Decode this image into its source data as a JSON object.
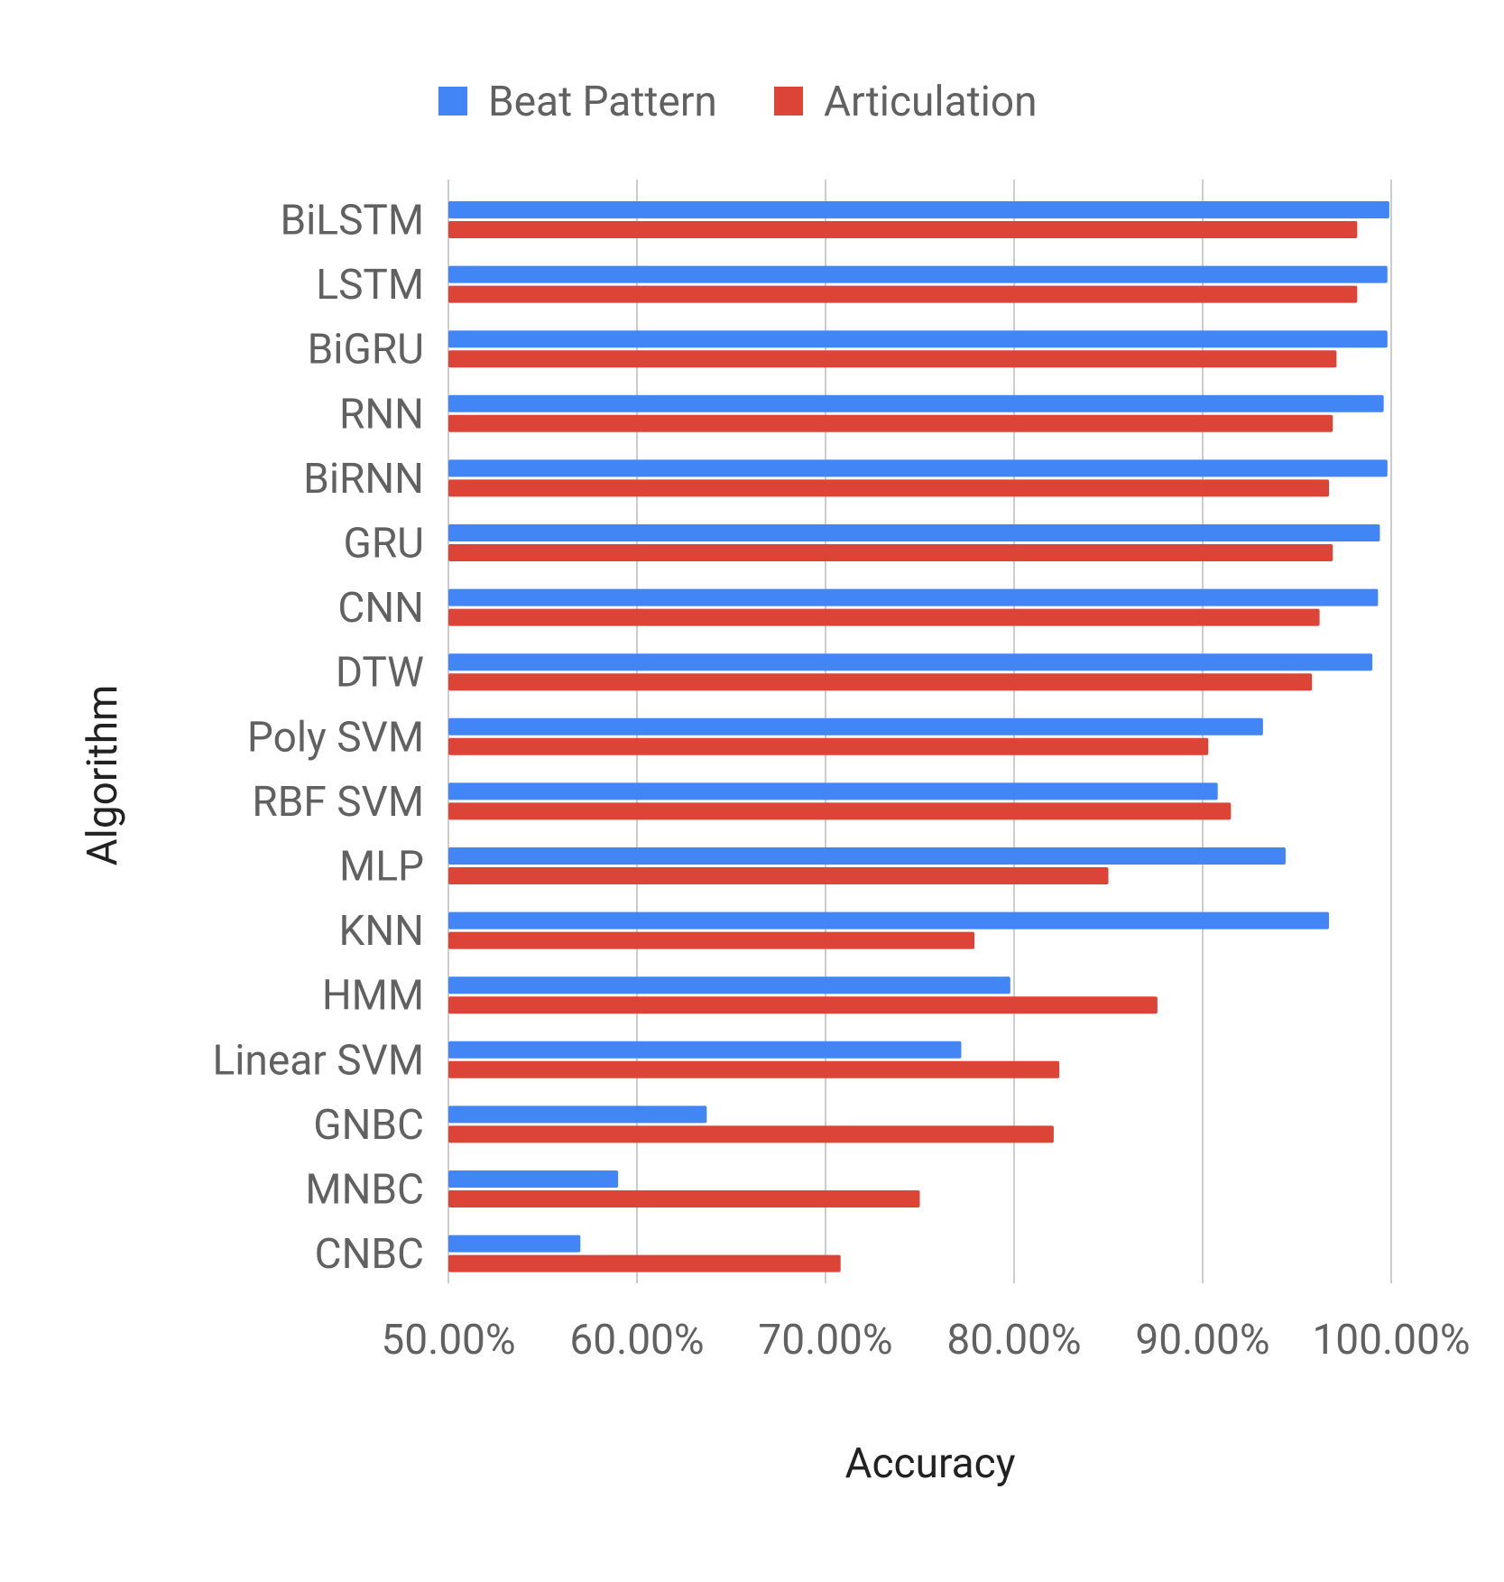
{
  "chart_data": {
    "type": "bar",
    "orientation": "horizontal",
    "categories": [
      "BiLSTM",
      "LSTM",
      "BiGRU",
      "RNN",
      "BiRNN",
      "GRU",
      "CNN",
      "DTW",
      "Poly SVM",
      "RBF SVM",
      "MLP",
      "KNN",
      "HMM",
      "Linear SVM",
      "GNBC",
      "MNBC",
      "CNBC"
    ],
    "series": [
      {
        "name": "Beat Pattern",
        "color": "#4285f4",
        "values": [
          99.9,
          99.8,
          99.8,
          99.6,
          99.8,
          99.4,
          99.3,
          99.0,
          93.2,
          90.8,
          94.4,
          96.7,
          79.8,
          77.2,
          63.7,
          59.0,
          57.0
        ]
      },
      {
        "name": "Articulation",
        "color": "#db4437",
        "values": [
          98.2,
          98.2,
          97.1,
          96.9,
          96.7,
          96.9,
          96.2,
          95.8,
          90.3,
          91.5,
          85.0,
          77.9,
          87.6,
          82.4,
          82.1,
          75.0,
          70.8
        ]
      }
    ],
    "xlim": [
      50,
      100
    ],
    "xticks": [
      "50.00%",
      "60.00%",
      "70.00%",
      "80.00%",
      "90.00%",
      "100.00%"
    ],
    "xtick_values": [
      50,
      60,
      70,
      80,
      90,
      100
    ],
    "xlabel": "Accuracy",
    "ylabel": "Algorithm",
    "legend_position": "top",
    "grid": "vertical"
  }
}
